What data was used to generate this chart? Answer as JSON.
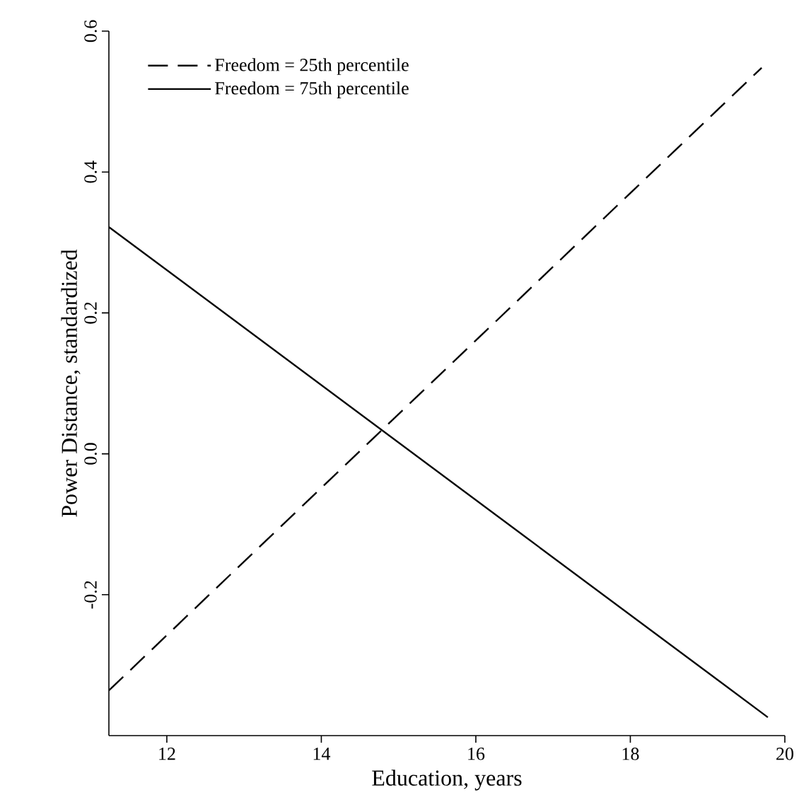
{
  "chart_data": {
    "type": "line",
    "xlabel": "Education, years",
    "ylabel": "Power Distance, standardized",
    "xlim": [
      11.25,
      20
    ],
    "xticks": [
      12,
      14,
      16,
      18,
      20
    ],
    "ylim": [
      -0.4,
      0.6
    ],
    "yticks": [
      {
        "value": -0.2,
        "label": "-0.2"
      },
      {
        "value": 0.0,
        "label": "0.0"
      },
      {
        "value": 0.2,
        "label": "0.2"
      },
      {
        "value": 0.4,
        "label": "0.4"
      },
      {
        "value": 0.6,
        "label": "0.6"
      }
    ],
    "legend": "top left",
    "grid": false,
    "series": [
      {
        "name": "Freedom = 25th percentile",
        "color": "#000000",
        "line_style": "dashed",
        "x": [
          11.25,
          19.7
        ],
        "values": [
          -0.336,
          0.548
        ]
      },
      {
        "name": "Freedom = 75th percentile",
        "color": "#000000",
        "line_style": "solid",
        "x": [
          11.25,
          19.78
        ],
        "values": [
          0.322,
          -0.374
        ]
      }
    ]
  }
}
